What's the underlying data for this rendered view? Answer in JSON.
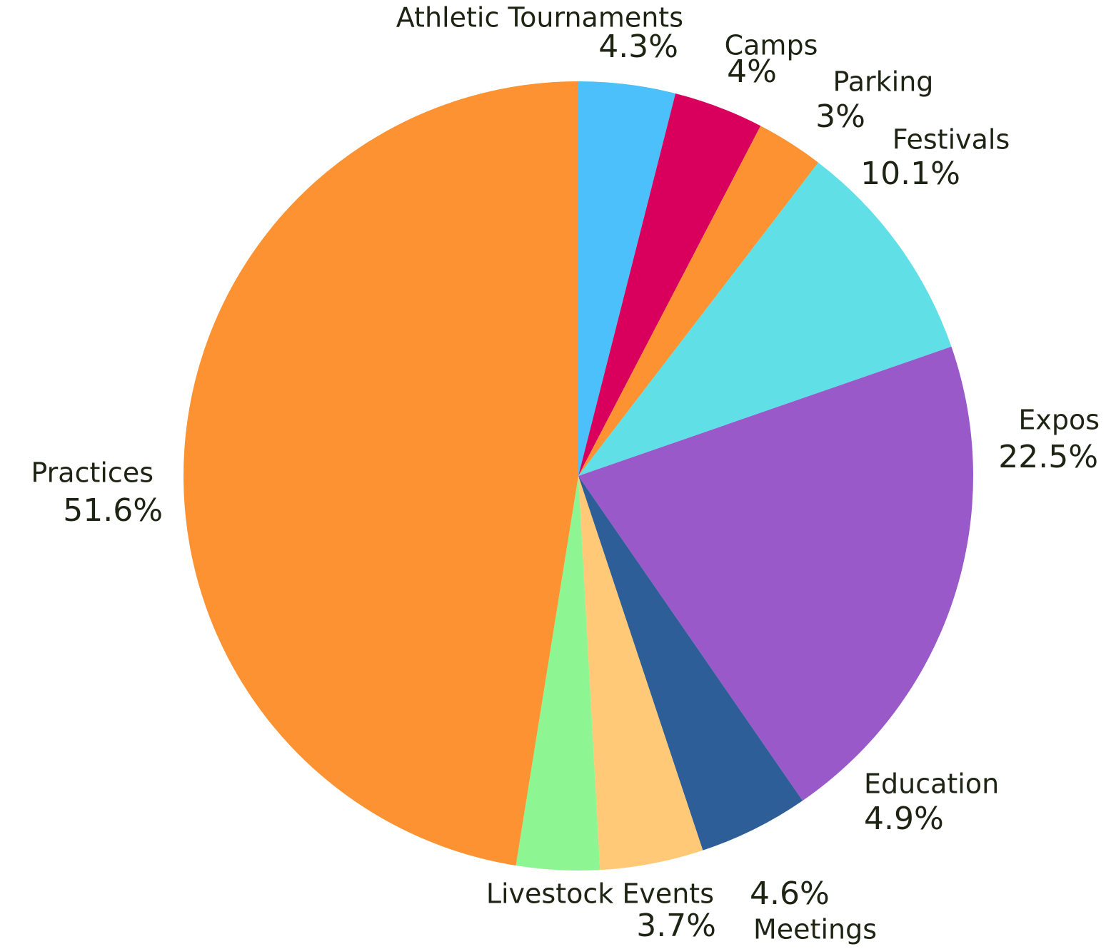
{
  "chart_data": {
    "type": "pie",
    "labels": [
      "Athletic Tournaments",
      "Camps",
      "Parking",
      "Festivals",
      "Expos",
      "Education",
      "Meetings",
      "Livestock Events",
      "Practices"
    ],
    "values": [
      4.3,
      4,
      3,
      10.1,
      22.5,
      4.9,
      4.6,
      3.7,
      51.6
    ],
    "value_labels": [
      "4.3%",
      "4%",
      "3%",
      "10.1%",
      "22.5%",
      "4.9%",
      "4.6%",
      "3.7%",
      "51.6%"
    ],
    "colors": [
      "#4bc0fb",
      "#d8005c",
      "#fc9232",
      "#60e0e6",
      "#9a59c9",
      "#2e5e97",
      "#ffc978",
      "#8df693",
      "#fc9232"
    ]
  }
}
